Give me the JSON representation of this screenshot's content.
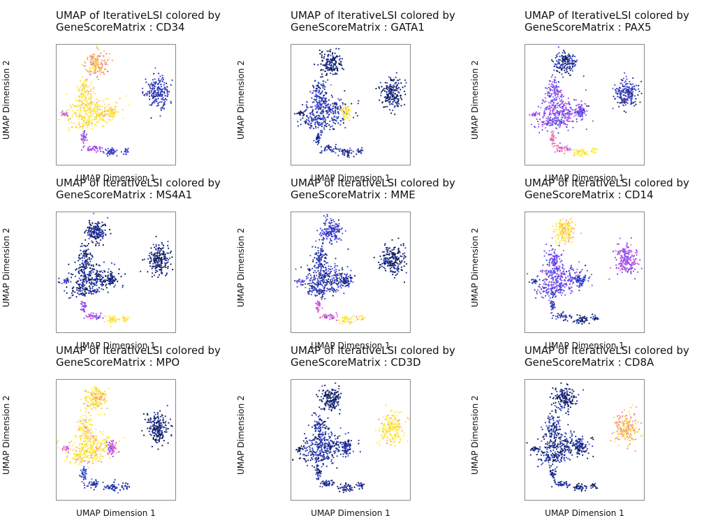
{
  "figure": {
    "panels": [
      {
        "title_line1": "UMAP of IterativeLSI colored by",
        "title_line2": "GeneScoreMatrix : CD34",
        "xlabel": "UMAP Dimension 1",
        "ylabel": "UMAP Dimension 2"
      },
      {
        "title_line1": "UMAP of IterativeLSI colored by",
        "title_line2": "GeneScoreMatrix : GATA1",
        "xlabel": "UMAP Dimension 1",
        "ylabel": "UMAP Dimension 2"
      },
      {
        "title_line1": "UMAP of IterativeLSI colored by",
        "title_line2": "GeneScoreMatrix : PAX5",
        "xlabel": "UMAP Dimension 1",
        "ylabel": "UMAP Dimension 2"
      },
      {
        "title_line1": "UMAP of IterativeLSI colored by",
        "title_line2": "GeneScoreMatrix : MS4A1",
        "xlabel": "UMAP Dimension 1",
        "ylabel": "UMAP Dimension 2"
      },
      {
        "title_line1": "UMAP of IterativeLSI colored by",
        "title_line2": "GeneScoreMatrix : MME",
        "xlabel": "UMAP Dimension 1",
        "ylabel": "UMAP Dimension 2"
      },
      {
        "title_line1": "UMAP of IterativeLSI colored by",
        "title_line2": "GeneScoreMatrix : CD14",
        "xlabel": "UMAP Dimension 1",
        "ylabel": "UMAP Dimension 2"
      },
      {
        "title_line1": "UMAP of IterativeLSI colored by",
        "title_line2": "GeneScoreMatrix : MPO",
        "xlabel": "UMAP Dimension 1",
        "ylabel": "UMAP Dimension 2"
      },
      {
        "title_line1": "UMAP of IterativeLSI colored by",
        "title_line2": "GeneScoreMatrix : CD3D",
        "xlabel": "UMAP Dimension 1",
        "ylabel": "UMAP Dimension 2"
      },
      {
        "title_line1": "UMAP of IterativeLSI colored by",
        "title_line2": "GeneScoreMatrix : CD8A",
        "xlabel": "UMAP Dimension 1",
        "ylabel": "UMAP Dimension 2"
      }
    ]
  },
  "colors": {
    "palette": [
      "#0d1a4e",
      "#2a3ab0",
      "#3d55e8",
      "#8a4df0",
      "#c24ff0",
      "#f06dc2",
      "#f7a86a",
      "#fbe04a",
      "#fdf541"
    ],
    "frame": "#888888"
  },
  "chart_data": [
    {
      "type": "scatter",
      "gene": "CD34",
      "high_expression_clusters": [
        "top",
        "center",
        "right_lobe",
        "left_tail"
      ],
      "clusters": {
        "top": 0.78,
        "center": 0.92,
        "right_lobe": 0.9,
        "left_tail": 0.55,
        "lower": 0.45,
        "bottom": 0.22,
        "right_cluster": 0.16
      },
      "grid": false
    },
    {
      "type": "scatter",
      "gene": "GATA1",
      "high_expression_clusters": [
        "right_lobe"
      ],
      "clusters": {
        "top": 0.03,
        "center": 0.14,
        "right_lobe": 0.95,
        "left_tail": 0.02,
        "lower": 0.12,
        "bottom": 0.1,
        "right_cluster": 0.04
      },
      "grid": false
    },
    {
      "type": "scatter",
      "gene": "PAX5",
      "high_expression_clusters": [
        "bottom"
      ],
      "clusters": {
        "top": 0.1,
        "center": 0.38,
        "right_lobe": 0.3,
        "left_tail": 0.4,
        "lower": 0.6,
        "bottom": 0.95,
        "right_cluster": 0.16
      },
      "grid": false
    },
    {
      "type": "scatter",
      "gene": "MS4A1",
      "high_expression_clusters": [
        "bottom"
      ],
      "clusters": {
        "top": 0.08,
        "center": 0.06,
        "right_lobe": 0.06,
        "left_tail": 0.18,
        "lower": 0.4,
        "bottom": 0.92,
        "right_cluster": 0.02
      },
      "grid": false
    },
    {
      "type": "scatter",
      "gene": "MME",
      "high_expression_clusters": [
        "bottom"
      ],
      "clusters": {
        "top": 0.22,
        "center": 0.15,
        "right_lobe": 0.12,
        "left_tail": 0.35,
        "lower": 0.55,
        "bottom": 0.93,
        "right_cluster": 0.04
      },
      "grid": false
    },
    {
      "type": "scatter",
      "gene": "CD14",
      "high_expression_clusters": [
        "top"
      ],
      "clusters": {
        "top": 0.88,
        "center": 0.32,
        "right_lobe": 0.2,
        "left_tail": 0.08,
        "lower": 0.16,
        "bottom": 0.05,
        "right_cluster": 0.42
      },
      "grid": false
    },
    {
      "type": "scatter",
      "gene": "MPO",
      "high_expression_clusters": [
        "top",
        "center"
      ],
      "clusters": {
        "top": 0.86,
        "center": 0.9,
        "right_lobe": 0.5,
        "left_tail": 0.58,
        "lower": 0.18,
        "bottom": 0.12,
        "right_cluster": 0.04
      },
      "grid": false
    },
    {
      "type": "scatter",
      "gene": "CD3D",
      "high_expression_clusters": [
        "right_cluster"
      ],
      "clusters": {
        "top": 0.04,
        "center": 0.1,
        "right_lobe": 0.1,
        "left_tail": 0.05,
        "lower": 0.1,
        "bottom": 0.06,
        "right_cluster": 0.93
      },
      "grid": false
    },
    {
      "type": "scatter",
      "gene": "CD8A",
      "high_expression_clusters": [
        "right_cluster"
      ],
      "clusters": {
        "top": 0.04,
        "center": 0.1,
        "right_lobe": 0.08,
        "left_tail": 0.04,
        "lower": 0.1,
        "bottom": 0.06,
        "right_cluster": 0.8
      },
      "grid": false
    }
  ]
}
